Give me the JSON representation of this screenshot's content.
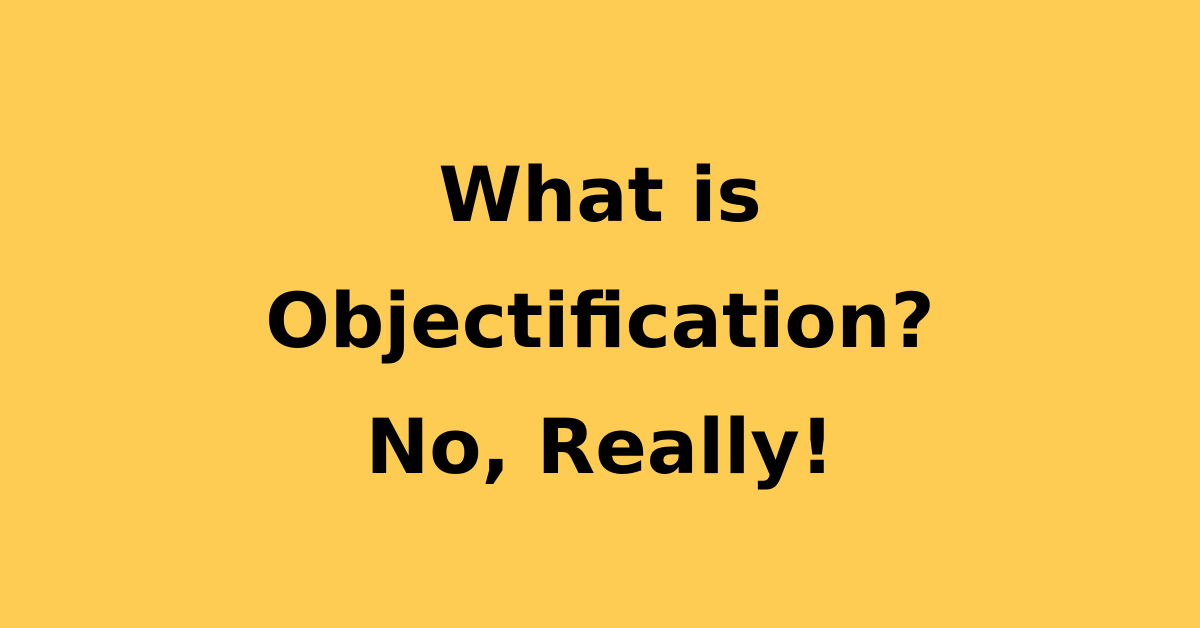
{
  "background_color": "#FECC53",
  "text_color": "#000000",
  "headline": {
    "line1": "What is",
    "line2": "Objectification?",
    "line3": "No, Really!"
  }
}
